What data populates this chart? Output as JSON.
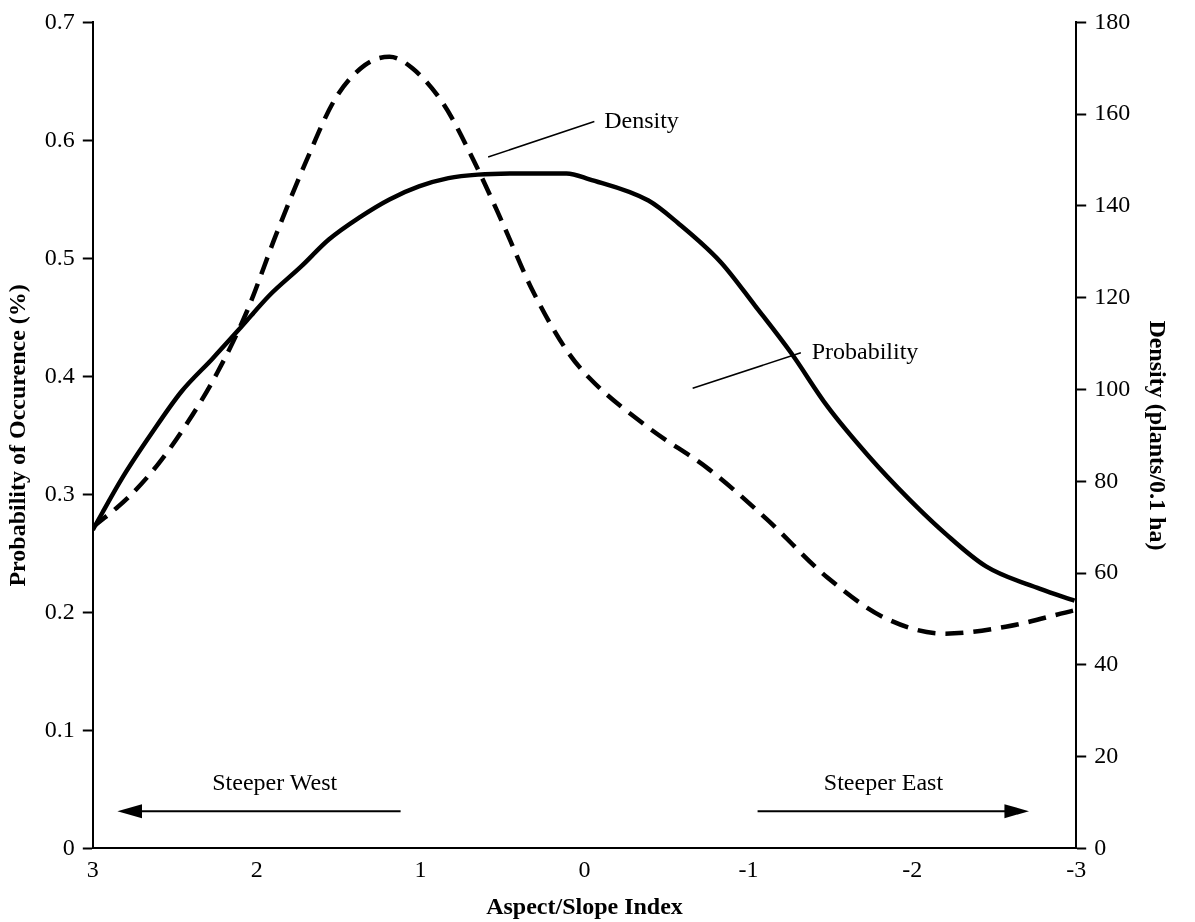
{
  "chart_data": {
    "type": "line",
    "xlabel": "Aspect/Slope Index",
    "ylabel": "Probability of Occurence (%)",
    "y2label": "Density (plants/0.1 ha)",
    "xlim": [
      3,
      -3
    ],
    "xticks": [
      3,
      2,
      1,
      0,
      -1,
      -2,
      -3
    ],
    "ylim": [
      0,
      0.7
    ],
    "yticks": [
      0,
      0.1,
      0.2,
      0.3,
      0.4,
      0.5,
      0.6,
      0.7
    ],
    "y2lim": [
      0,
      180
    ],
    "y2ticks": [
      0,
      20,
      40,
      60,
      80,
      100,
      120,
      140,
      160,
      180
    ],
    "grid": false,
    "legend": false,
    "marker": "none",
    "annotations": [
      "Density",
      "Probability",
      "Steeper West",
      "Steeper East"
    ],
    "series": [
      {
        "color": "#000000",
        "line_style": "solid",
        "x": [
          3,
          2.82,
          2.64,
          2.46,
          2.27,
          2.1,
          1.92,
          1.73,
          1.56,
          1.37,
          1.19,
          1.01,
          0.83,
          0.65,
          0.4,
          0.11,
          -0.03,
          -0.39,
          -0.57,
          -0.83,
          -1.04,
          -1.26,
          -1.48,
          -1.73,
          -1.98,
          -2.2,
          -2.45,
          -2.78,
          -2.99
        ],
        "values": [
          0.27,
          0.314,
          0.352,
          0.387,
          0.415,
          0.441,
          0.469,
          0.493,
          0.516,
          0.535,
          0.55,
          0.561,
          0.568,
          0.571,
          0.572,
          0.572,
          0.567,
          0.549,
          0.53,
          0.497,
          0.46,
          0.42,
          0.375,
          0.333,
          0.296,
          0.267,
          0.239,
          0.22,
          0.21
        ]
      },
      {
        "color": "#000000",
        "line_style": "dashed",
        "axis": "y2",
        "x": [
          3,
          2.78,
          2.6,
          2.42,
          2.24,
          2.06,
          1.88,
          1.7,
          1.52,
          1.34,
          1.19,
          1.05,
          0.86,
          0.68,
          0.5,
          0.32,
          0.11,
          -0.03,
          -0.39,
          -0.76,
          -1.11,
          -1.48,
          -1.84,
          -2.2,
          -2.57,
          -2.99
        ],
        "values": [
          70,
          76.6,
          83.8,
          92.9,
          103.7,
          117,
          133.9,
          149.6,
          163.4,
          170.7,
          172.5,
          170,
          162.2,
          150.2,
          136.3,
          121.8,
          108.6,
          102.5,
          91.7,
          82.6,
          71.8,
          59.1,
          50.1,
          46.8,
          48.3,
          51.9
        ]
      }
    ]
  }
}
